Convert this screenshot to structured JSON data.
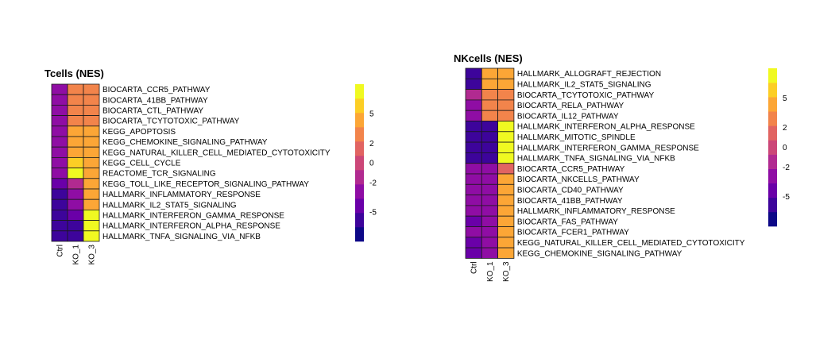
{
  "palette": {
    "levels": [
      "#0d0887",
      "#3d049b",
      "#6a00a8",
      "#8f0da4",
      "#b12a90",
      "#cc4778",
      "#e16462",
      "#f2844b",
      "#fca636",
      "#fcce25",
      "#f0f921"
    ],
    "grid_color": "#1a1a1a"
  },
  "chart_data": [
    {
      "type": "heatmap",
      "name": "tcells",
      "title": "Tcells  (NES)",
      "columns": [
        "Ctrl",
        "KO_1",
        "KO_3"
      ],
      "rows": [
        "BIOCARTA_CCR5_PATHWAY",
        "BIOCARTA_41BB_PATHWAY",
        "BIOCARTA_CTL_PATHWAY",
        "BIOCARTA_TCYTOTOXIC_PATHWAY",
        "KEGG_APOPTOSIS",
        "KEGG_CHEMOKINE_SIGNALING_PATHWAY",
        "KEGG_NATURAL_KILLER_CELL_MEDIATED_CYTOTOXICITY",
        "KEGG_CELL_CYCLE",
        "REACTOME_TCR_SIGNALING",
        "KEGG_TOLL_LIKE_RECEPTOR_SIGNALING_PATHWAY",
        "HALLMARK_INFLAMMATORY_RESPONSE",
        "HALLMARK_IL2_STAT5_SIGNALING",
        "HALLMARK_INTERFERON_GAMMA_RESPONSE",
        "HALLMARK_INTERFERON_ALPHA_RESPONSE",
        "HALLMARK_TNFA_SIGNALING_VIA_NFKB"
      ],
      "values": [
        [
          -3,
          3,
          3
        ],
        [
          -3,
          3,
          3
        ],
        [
          -3,
          3,
          3
        ],
        [
          -3,
          3,
          3
        ],
        [
          -4,
          4,
          4
        ],
        [
          -4,
          4,
          5
        ],
        [
          -4,
          4,
          4
        ],
        [
          -4,
          6,
          4
        ],
        [
          -4,
          8,
          4
        ],
        [
          -5,
          -2,
          4
        ],
        [
          -6,
          -4,
          4
        ],
        [
          -6,
          -4,
          4
        ],
        [
          -7,
          -5,
          8
        ],
        [
          -7,
          -6,
          8
        ],
        [
          -7,
          -6,
          8
        ]
      ],
      "legend": {
        "tick_values": [
          -5,
          -2,
          0,
          2,
          5
        ],
        "tick_labels": [
          "-5",
          "-2",
          "0",
          "2",
          "5"
        ],
        "range": [
          -8,
          8
        ]
      }
    },
    {
      "type": "heatmap",
      "name": "nkcells",
      "title": "NKcells  (NES)",
      "columns": [
        "Ctrl",
        "KO_1",
        "KO_3"
      ],
      "rows": [
        "HALLMARK_ALLOGRAFT_REJECTION",
        "HALLMARK_IL2_STAT5_SIGNALING",
        "BIOCARTA_TCYTOTOXIC_PATHWAY",
        "BIOCARTA_RELA_PATHWAY",
        "BIOCARTA_IL12_PATHWAY",
        "HALLMARK_INTERFERON_ALPHA_RESPONSE",
        "HALLMARK_MITOTIC_SPINDLE",
        "HALLMARK_INTERFERON_GAMMA_RESPONSE",
        "HALLMARK_TNFA_SIGNALING_VIA_NFKB",
        "BIOCARTA_CCR5_PATHWAY",
        "BIOCARTA_NKCELLS_PATHWAY",
        "BIOCARTA_CD40_PATHWAY",
        "BIOCARTA_41BB_PATHWAY",
        "HALLMARK_INFLAMMATORY_RESPONSE",
        "BIOCARTA_FAS_PATHWAY",
        "BIOCARTA_FCER1_PATHWAY",
        "KEGG_NATURAL_KILLER_CELL_MEDIATED_CYTOTOXICITY",
        "KEGG_CHEMOKINE_SIGNALING_PATHWAY"
      ],
      "values": [
        [
          -6,
          5,
          5
        ],
        [
          -6,
          5,
          5
        ],
        [
          -2,
          3,
          3
        ],
        [
          -4,
          3,
          3
        ],
        [
          -3,
          3,
          3
        ],
        [
          -7,
          -7,
          8
        ],
        [
          -7,
          -7,
          8
        ],
        [
          -7,
          -7,
          8
        ],
        [
          -7,
          -6,
          8
        ],
        [
          -3,
          -3,
          2
        ],
        [
          -4,
          -3,
          4
        ],
        [
          -4,
          -3,
          4
        ],
        [
          -4,
          -3,
          4
        ],
        [
          -4,
          -3,
          4
        ],
        [
          -5,
          -3,
          4
        ],
        [
          -4,
          -3,
          4
        ],
        [
          -5,
          -4,
          5
        ],
        [
          -5,
          -4,
          5
        ]
      ],
      "legend": {
        "tick_values": [
          -5,
          -2,
          0,
          2,
          5
        ],
        "tick_labels": [
          "-5",
          "-2",
          "0",
          "2",
          "5"
        ],
        "range": [
          -8,
          8
        ]
      }
    }
  ]
}
